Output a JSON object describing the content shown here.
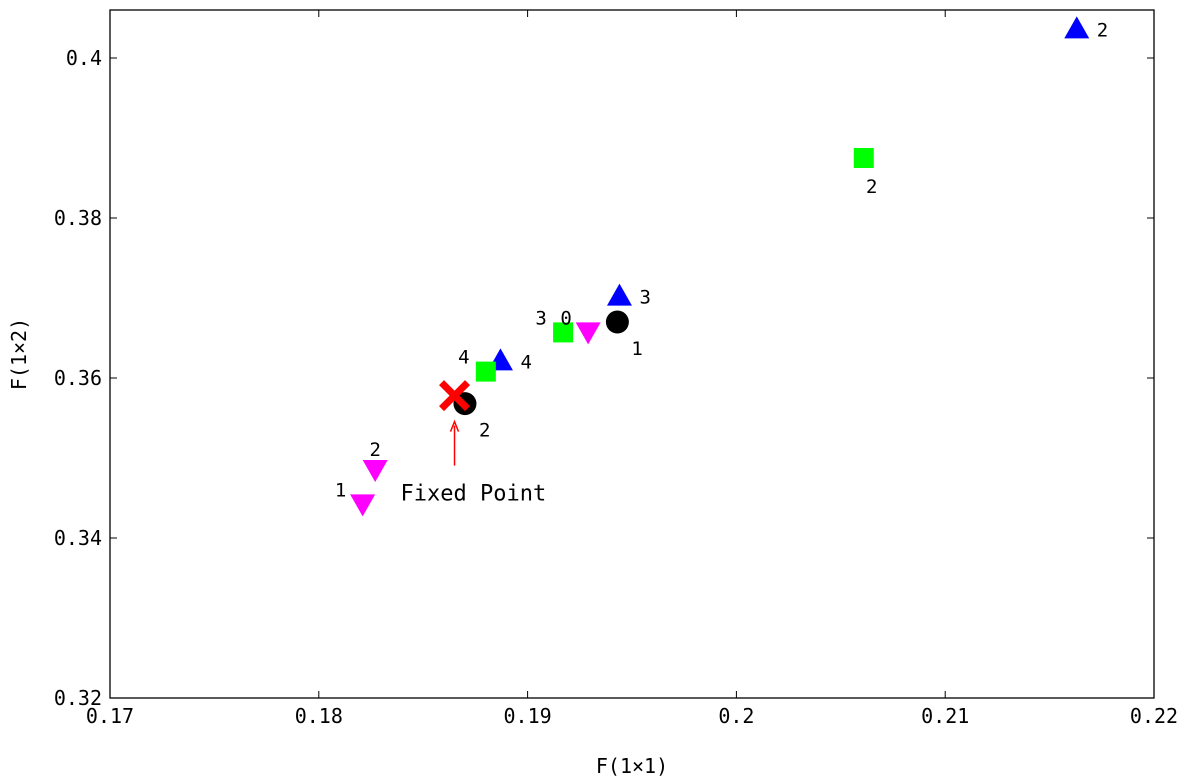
{
  "chart_data": {
    "type": "scatter",
    "xlabel": "F(1×1)",
    "ylabel": "F(1×2)",
    "xlim": [
      0.17,
      0.22
    ],
    "ylim": [
      0.32,
      0.406
    ],
    "xticks": [
      0.17,
      0.18,
      0.19,
      0.2,
      0.21,
      0.22
    ],
    "xtick_labels": [
      "0.17",
      "0.18",
      "0.19",
      "0.2",
      "0.21",
      "0.22"
    ],
    "yticks": [
      0.32,
      0.34,
      0.36,
      0.38,
      0.4
    ],
    "ytick_labels": [
      "0.32",
      "0.34",
      "0.36",
      "0.38",
      "0.4"
    ],
    "grid": false,
    "series": [
      {
        "marker": "circle",
        "color": "#000000",
        "points": [
          {
            "x": 0.1943,
            "y": 0.367,
            "label": "1",
            "label_pos": "below-right"
          },
          {
            "x": 0.187,
            "y": 0.3568,
            "label": "2",
            "label_pos": "below-right"
          }
        ]
      },
      {
        "marker": "triangle-up",
        "color": "#0000ff",
        "points": [
          {
            "x": 0.2163,
            "y": 0.4037,
            "label": "2",
            "label_pos": "right"
          },
          {
            "x": 0.1944,
            "y": 0.3703,
            "label": "3",
            "label_pos": "right"
          },
          {
            "x": 0.1887,
            "y": 0.3622,
            "label": "4",
            "label_pos": "right"
          }
        ]
      },
      {
        "marker": "square",
        "color": "#00ff00",
        "points": [
          {
            "x": 0.2061,
            "y": 0.3875,
            "label": "2",
            "label_pos": "below"
          },
          {
            "x": 0.1917,
            "y": 0.3657,
            "label": "3",
            "label_pos": "above-left"
          },
          {
            "x": 0.188,
            "y": 0.3608,
            "label": "4",
            "label_pos": "above-left"
          }
        ]
      },
      {
        "marker": "triangle-down",
        "color": "#ff00ff",
        "points": [
          {
            "x": 0.1929,
            "y": 0.3657,
            "label": "0",
            "label_pos": "above-left"
          },
          {
            "x": 0.1821,
            "y": 0.3442,
            "label": "1",
            "label_pos": "above-left"
          },
          {
            "x": 0.1827,
            "y": 0.3485,
            "label": "2",
            "label_pos": "above"
          }
        ]
      },
      {
        "marker": "x",
        "color": "#ff0000",
        "points": [
          {
            "x": 0.1865,
            "y": 0.3578,
            "label": "",
            "label_pos": "none"
          }
        ]
      }
    ],
    "annotations": [
      {
        "text": "Fixed Point",
        "arrow_to": {
          "x": 0.1865,
          "y": 0.3578
        },
        "arrow_color": "#ff0000"
      }
    ]
  }
}
